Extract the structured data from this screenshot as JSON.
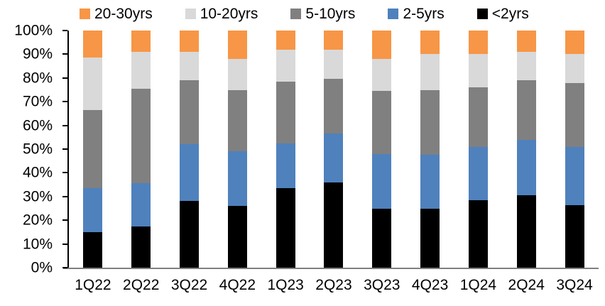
{
  "chart_data": {
    "type": "bar",
    "subtype": "stacked-100-percent",
    "title": "",
    "xlabel": "",
    "ylabel": "",
    "ylim": [
      0,
      100
    ],
    "grid": false,
    "legend_position": "top",
    "legend_order": [
      "20-30yrs",
      "10-20yrs",
      "5-10yrs",
      "2-5yrs",
      "<2yrs"
    ],
    "y_ticks": [
      {
        "label": "0%",
        "value": 0
      },
      {
        "label": "10%",
        "value": 10
      },
      {
        "label": "20%",
        "value": 20
      },
      {
        "label": "30%",
        "value": 30
      },
      {
        "label": "40%",
        "value": 40
      },
      {
        "label": "50%",
        "value": 50
      },
      {
        "label": "60%",
        "value": 60
      },
      {
        "label": "70%",
        "value": 70
      },
      {
        "label": "80%",
        "value": 80
      },
      {
        "label": "90%",
        "value": 90
      },
      {
        "label": "100%",
        "value": 100
      }
    ],
    "categories": [
      "1Q22",
      "2Q22",
      "3Q22",
      "4Q22",
      "1Q23",
      "2Q23",
      "3Q23",
      "4Q23",
      "1Q24",
      "2Q24",
      "3Q24"
    ],
    "series": [
      {
        "name": "<2yrs",
        "color": "#000000",
        "values": [
          15,
          17.5,
          28,
          26,
          33.5,
          36,
          25,
          25,
          28.5,
          30.5,
          26.5
        ]
      },
      {
        "name": "2-5yrs",
        "color": "#4f81bd",
        "values": [
          18.5,
          18,
          24,
          23,
          19,
          20.5,
          23,
          22.5,
          22.5,
          23.5,
          24.5
        ]
      },
      {
        "name": "5-10yrs",
        "color": "#808080",
        "values": [
          33,
          40,
          27,
          26,
          26,
          23,
          26.5,
          27.5,
          25,
          25,
          27
        ]
      },
      {
        "name": "10-20yrs",
        "color": "#d9d9d9",
        "values": [
          22,
          15.5,
          12,
          13,
          13.5,
          12.5,
          13.5,
          15,
          14,
          12,
          12
        ]
      },
      {
        "name": "20-30yrs",
        "color": "#f79646",
        "values": [
          11.5,
          9,
          9,
          12,
          8,
          8,
          12,
          10,
          10,
          9,
          10
        ]
      }
    ],
    "colors": {
      "axis_line": "#000000",
      "baseline": "#7f7f7f",
      "text": "#000000",
      "background": "#ffffff"
    }
  }
}
